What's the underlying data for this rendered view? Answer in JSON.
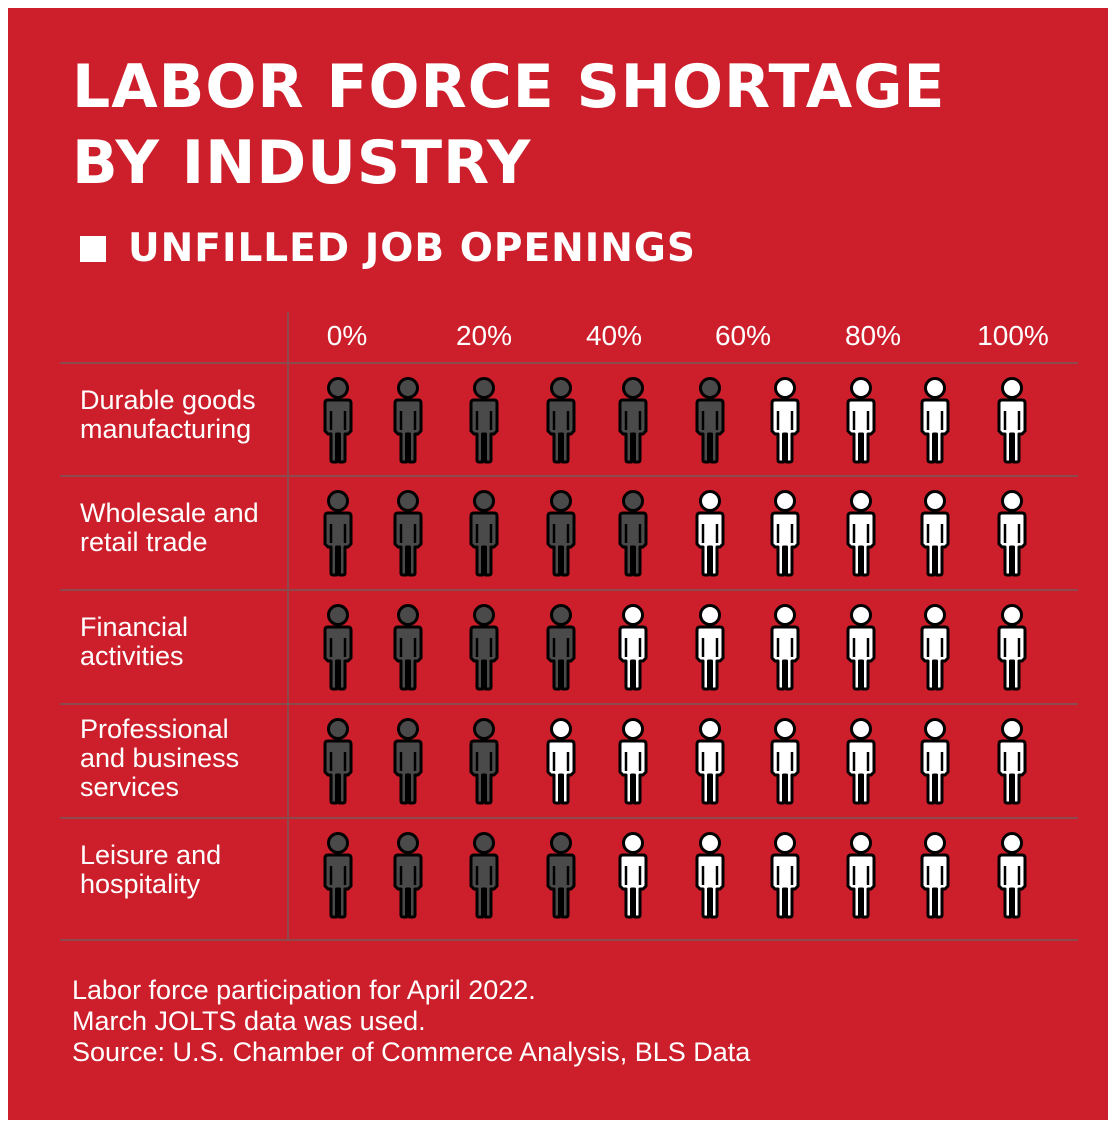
{
  "title": [
    "LABOR FORCE SHORTAGE",
    "BY INDUSTRY"
  ],
  "legend": {
    "label": "UNFILLED JOB OPENINGS",
    "color": "#ffffff"
  },
  "colors": {
    "background": "#cc1f2b",
    "filled_icon": "#4a4a4a",
    "unfilled_icon": "#ffffff",
    "text": "#ffffff"
  },
  "chart_data": {
    "type": "pictograph",
    "icon": "person-icon",
    "icons_per_row": 10,
    "x_ticks": [
      "0%",
      "20%",
      "40%",
      "60%",
      "80%",
      "100%"
    ],
    "unfilled_series_name": "UNFILLED JOB OPENINGS",
    "categories": [
      [
        "Durable goods",
        "manufacturing"
      ],
      [
        "Wholesale and",
        "retail trade"
      ],
      [
        "Financial",
        "activities"
      ],
      [
        "Professional",
        "and business",
        "services"
      ],
      [
        "Leisure and",
        "hospitality"
      ]
    ],
    "filled_icons": [
      6,
      5,
      4,
      3,
      4
    ],
    "unfilled_icons": [
      4,
      5,
      6,
      7,
      6
    ]
  },
  "footnote": [
    "Labor force participation for April 2022.",
    "March JOLTS data was used.",
    "Source: U.S. Chamber of Commerce Analysis, BLS Data"
  ]
}
